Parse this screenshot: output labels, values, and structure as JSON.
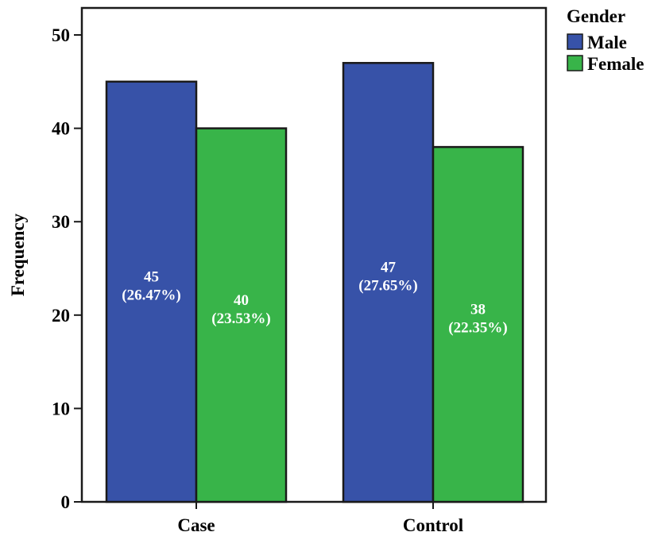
{
  "chart_data": {
    "type": "bar",
    "categories": [
      "Case",
      "Control"
    ],
    "series": [
      {
        "name": "Male",
        "values": [
          45,
          47
        ],
        "color": "#3752A8",
        "labels": [
          [
            "45",
            "(26.47%)"
          ],
          [
            "47",
            "(27.65%)"
          ]
        ]
      },
      {
        "name": "Female",
        "values": [
          40,
          38
        ],
        "color": "#38B449",
        "labels": [
          [
            "40",
            "(23.53%)"
          ],
          [
            "38",
            "(22.35%)"
          ]
        ]
      }
    ],
    "title": "",
    "xlabel": "",
    "ylabel": "Frequency",
    "ylim": [
      0,
      50
    ],
    "yticks": [
      0,
      10,
      20,
      30,
      40,
      50
    ],
    "grid": false,
    "legend": {
      "title": "Gender",
      "position": "top-right"
    }
  }
}
